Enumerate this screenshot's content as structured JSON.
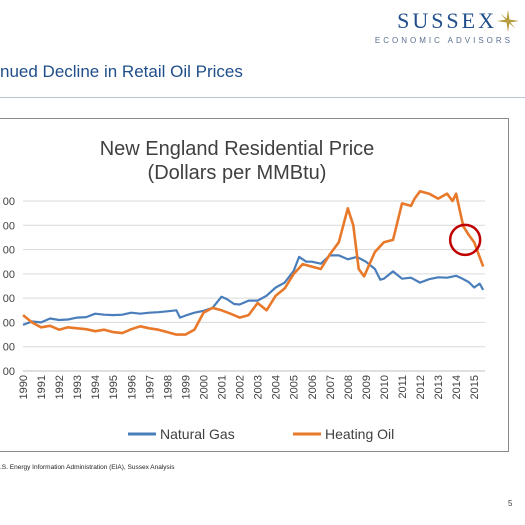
{
  "header": {
    "logo_word": "SUSSEX",
    "logo_subtitle": "ECONOMIC ADVISORS",
    "slide_title": "nued Decline in Retail Oil Prices"
  },
  "footer": {
    "source": ".S. Energy Information Administration (EIA), Sussex Analysis",
    "page_number": "5"
  },
  "colors": {
    "brand": "#1f4e8a",
    "natural_gas": "#4a7ebb",
    "heating_oil": "#e8792b",
    "highlight_circle": "#c00000"
  },
  "icons": {
    "logo_mark": "compass-star-icon"
  },
  "chart_data": {
    "type": "line",
    "title": "New England Residential Price",
    "subtitle": "(Dollars per MMBtu)",
    "x_labels": [
      "1990",
      "1991",
      "1992",
      "1993",
      "1994",
      "1995",
      "1996",
      "1997",
      "1998",
      "1999",
      "2000",
      "2001",
      "2002",
      "2003",
      "2004",
      "2005",
      "2006",
      "2007",
      "2008",
      "2009",
      "2010",
      "2011",
      "2012",
      "2013",
      "2014",
      "2015"
    ],
    "y_tick_labels": [
      "00",
      "00",
      "00",
      "00",
      "00",
      "00",
      "00",
      "00"
    ],
    "xlim": [
      1990,
      2015.6
    ],
    "ylim": [
      0,
      35
    ],
    "grid": "horizontal",
    "legend_position": "bottom",
    "series": [
      {
        "name": "Natural Gas",
        "color": "#4a7ebb",
        "x": [
          1990.0,
          1990.5,
          1991.0,
          1991.5,
          1992.0,
          1992.5,
          1993.0,
          1993.5,
          1994.0,
          1994.5,
          1995.0,
          1995.5,
          1996.0,
          1996.5,
          1997.0,
          1997.5,
          1998.0,
          1998.5,
          1998.7,
          1999.0,
          1999.5,
          2000.0,
          2000.5,
          2001.0,
          2001.3,
          2001.7,
          2002.0,
          2002.5,
          2003.0,
          2003.5,
          2004.0,
          2004.5,
          2005.0,
          2005.3,
          2005.7,
          2006.0,
          2006.5,
          2007.0,
          2007.5,
          2008.0,
          2008.5,
          2009.0,
          2009.5,
          2009.8,
          2010.0,
          2010.5,
          2011.0,
          2011.5,
          2012.0,
          2012.5,
          2013.0,
          2013.5,
          2014.0,
          2014.3,
          2014.7,
          2015.0,
          2015.3,
          2015.5
        ],
        "y": [
          9.5,
          10.2,
          10.0,
          10.8,
          10.5,
          10.6,
          11.0,
          11.1,
          11.8,
          11.6,
          11.5,
          11.6,
          12.0,
          11.8,
          12.0,
          12.1,
          12.3,
          12.5,
          11.0,
          11.4,
          12.0,
          12.4,
          13.0,
          15.3,
          14.8,
          13.8,
          13.7,
          14.5,
          14.5,
          15.5,
          17.2,
          18.2,
          20.6,
          23.5,
          22.5,
          22.5,
          22.1,
          23.8,
          23.8,
          23.0,
          23.5,
          22.5,
          21.0,
          18.8,
          19.0,
          20.5,
          19.0,
          19.2,
          18.2,
          18.9,
          19.3,
          19.2,
          19.6,
          19.1,
          18.3,
          17.2,
          18.0,
          16.7
        ]
      },
      {
        "name": "Heating Oil",
        "color": "#e8792b",
        "x": [
          1990.0,
          1990.5,
          1991.0,
          1991.5,
          1992.0,
          1992.5,
          1993.0,
          1993.5,
          1994.0,
          1994.5,
          1995.0,
          1995.5,
          1996.0,
          1996.5,
          1997.0,
          1997.5,
          1998.0,
          1998.5,
          1999.0,
          1999.5,
          2000.0,
          2000.5,
          2001.0,
          2001.5,
          2002.0,
          2002.5,
          2003.0,
          2003.5,
          2004.0,
          2004.5,
          2005.0,
          2005.5,
          2006.0,
          2006.5,
          2007.0,
          2007.5,
          2008.0,
          2008.3,
          2008.6,
          2008.9,
          2009.2,
          2009.5,
          2010.0,
          2010.5,
          2011.0,
          2011.5,
          2011.7,
          2012.0,
          2012.5,
          2013.0,
          2013.5,
          2013.8,
          2014.0,
          2014.4,
          2014.7,
          2015.0,
          2015.3,
          2015.5
        ],
        "y": [
          11.5,
          10.0,
          9.0,
          9.3,
          8.5,
          9.0,
          8.8,
          8.6,
          8.2,
          8.5,
          8.0,
          7.8,
          8.6,
          9.2,
          8.8,
          8.5,
          8.0,
          7.5,
          7.5,
          8.5,
          12.0,
          13.0,
          12.5,
          11.8,
          11.0,
          11.5,
          14.0,
          12.5,
          15.5,
          17.0,
          20.0,
          22.0,
          21.5,
          21.0,
          24.0,
          26.5,
          33.5,
          30.0,
          21.0,
          19.5,
          22.0,
          24.5,
          26.5,
          27.0,
          34.5,
          34.0,
          35.5,
          37.0,
          36.5,
          35.5,
          36.5,
          35.0,
          36.5,
          29.8,
          28.0,
          26.5,
          23.5,
          21.5
        ]
      }
    ],
    "annotation": {
      "type": "circle",
      "center_x": 2014.5,
      "center_y": 27
    }
  }
}
